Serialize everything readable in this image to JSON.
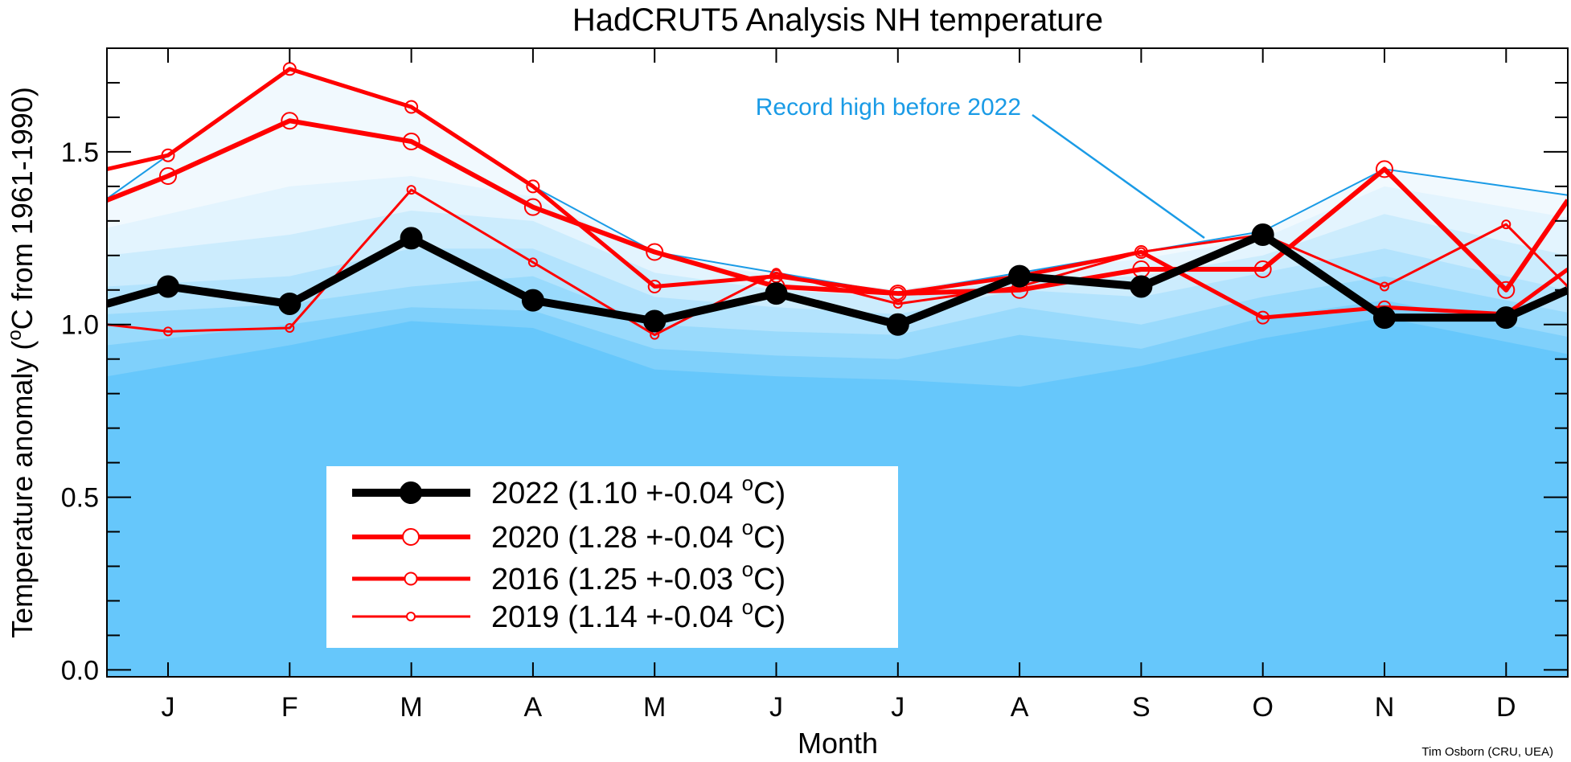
{
  "chart_data": {
    "type": "line",
    "title": "HadCRUT5 Analysis NH temperature",
    "xlabel": "Month",
    "ylabel": "Temperature anomaly (°C from 1961-1990)",
    "ylabel_parts": {
      "pre": "Temperature anomaly (",
      "deg": "o",
      "post": "C from 1961-1990)"
    },
    "credit": "Tim Osborn (CRU, UEA)",
    "annotation": "Record high before 2022",
    "categories": [
      "J",
      "F",
      "M",
      "A",
      "M",
      "J",
      "J",
      "A",
      "S",
      "O",
      "N",
      "D"
    ],
    "ylim": [
      -0.02,
      1.8
    ],
    "yticks": [
      0.0,
      0.5,
      1.0,
      1.5
    ],
    "ytick_labels": [
      "0.0",
      "0.5",
      "1.0",
      "1.5"
    ],
    "colors": {
      "series_2022": "#000000",
      "series_red": "#ff0000",
      "record": "#1a9be6",
      "annotation": "#1a9be6",
      "band_base": "#66c7fb"
    },
    "record_high": [
      1.49,
      1.74,
      1.63,
      1.4,
      1.21,
      1.15,
      1.09,
      1.15,
      1.21,
      1.27,
      1.45,
      1.4
    ],
    "background_bands": [
      {
        "color": "#66c7fb",
        "values": [
          0.88,
          0.94,
          1.01,
          0.99,
          0.87,
          0.85,
          0.84,
          0.82,
          0.88,
          0.96,
          1.02,
          0.95
        ]
      },
      {
        "color": "#7fd0fb",
        "values": [
          0.96,
          1.0,
          1.05,
          1.04,
          0.93,
          0.91,
          0.9,
          0.97,
          0.93,
          1.02,
          1.07,
          1.0
        ]
      },
      {
        "color": "#99dafc",
        "values": [
          1.04,
          1.06,
          1.11,
          1.14,
          1.0,
          0.98,
          0.97,
          1.05,
          1.0,
          1.08,
          1.14,
          1.07
        ]
      },
      {
        "color": "#b3e3fd",
        "values": [
          1.12,
          1.14,
          1.22,
          1.22,
          1.08,
          1.05,
          1.03,
          1.1,
          1.08,
          1.15,
          1.22,
          1.14
        ]
      },
      {
        "color": "#ccecfd",
        "values": [
          1.22,
          1.26,
          1.33,
          1.3,
          1.15,
          1.1,
          1.08,
          1.13,
          1.14,
          1.2,
          1.32,
          1.24
        ]
      },
      {
        "color": "#e3f4fe",
        "values": [
          1.32,
          1.4,
          1.43,
          1.37,
          1.2,
          1.14,
          1.1,
          1.15,
          1.19,
          1.25,
          1.4,
          1.34
        ]
      },
      {
        "color": "#f1f9fe",
        "values": [
          1.49,
          1.74,
          1.63,
          1.4,
          1.21,
          1.15,
          1.09,
          1.15,
          1.21,
          1.27,
          1.45,
          1.4
        ]
      }
    ],
    "series": [
      {
        "name": "2019 (1.14 +-0.04 °C)",
        "legend_pre": "2019 (1.14 +-0.04 ",
        "legend_post": "C)",
        "color": "#ff0000",
        "stroke": 3,
        "marker": 5,
        "values": [
          0.98,
          0.99,
          1.39,
          1.18,
          0.97,
          1.15,
          1.06,
          1.11,
          1.21,
          1.26,
          1.11,
          1.29
        ]
      },
      {
        "name": "2016 (1.25 +-0.03 °C)",
        "legend_pre": "2016 (1.25 +-0.03 ",
        "legend_post": "C)",
        "color": "#ff0000",
        "stroke": 5,
        "marker": 7.5,
        "values": [
          1.49,
          1.74,
          1.63,
          1.4,
          1.11,
          1.14,
          1.09,
          1.14,
          1.21,
          1.02,
          1.05,
          1.03
        ]
      },
      {
        "name": "2020 (1.28 +-0.04 °C)",
        "legend_pre": "2020 (1.28 +-0.04 ",
        "legend_post": "C)",
        "color": "#ff0000",
        "stroke": 6,
        "marker": 10,
        "values": [
          1.43,
          1.59,
          1.53,
          1.34,
          1.21,
          1.11,
          1.09,
          1.1,
          1.16,
          1.16,
          1.45,
          1.1
        ]
      },
      {
        "name": "2022 (1.10 +-0.04 °C)",
        "legend_pre": "2022 (1.10 +-0.04 ",
        "legend_post": "C)",
        "color": "#000000",
        "stroke": 10,
        "marker": 13,
        "values": [
          1.11,
          1.06,
          1.25,
          1.07,
          1.01,
          1.09,
          1.0,
          1.14,
          1.11,
          1.26,
          1.02,
          1.02
        ]
      }
    ],
    "legend_order": [
      3,
      2,
      1,
      0
    ],
    "legend_degree": "o",
    "extend_left": {
      "2022": 1.06,
      "2020": 1.36,
      "2016": 1.45,
      "2019": 1.0
    },
    "extend_right": {
      "2022": 1.1,
      "2020": 1.36,
      "2016": 1.16,
      "2019": 1.11
    },
    "grid": false,
    "legend_position": "lower-left"
  }
}
